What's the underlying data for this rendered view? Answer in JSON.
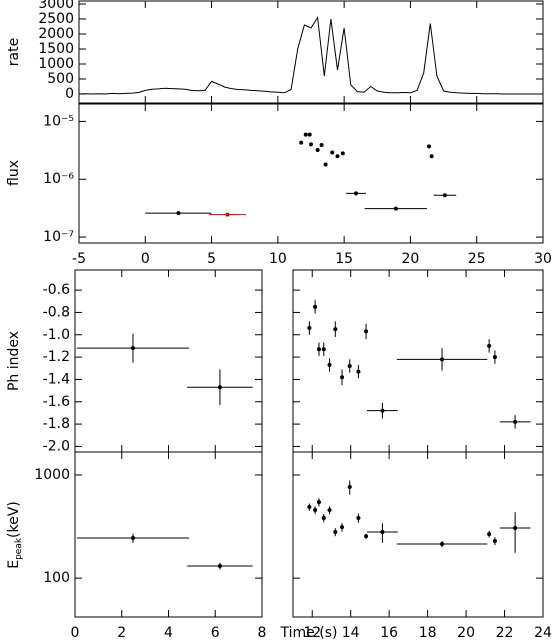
{
  "chart_data": [
    {
      "type": "line",
      "ylabel": "rate",
      "color": "#000000",
      "xlim": [
        -5,
        30
      ],
      "xticks": [
        -5,
        0,
        5,
        10,
        15,
        20,
        25,
        30
      ],
      "xtick_labels": false,
      "ylim": [
        -300,
        3100
      ],
      "yticks": [
        0,
        500,
        1000,
        1500,
        2000,
        2500,
        3000
      ],
      "x": [
        -5,
        -4.5,
        -4,
        -3.5,
        -3,
        -2.5,
        -2,
        -1.5,
        -1,
        -0.5,
        0,
        0.5,
        1,
        1.5,
        2,
        2.5,
        3,
        3.5,
        4,
        4.5,
        5,
        5.5,
        6,
        6.5,
        7,
        7.5,
        8,
        8.5,
        9,
        9.5,
        10,
        10.5,
        11,
        11.5,
        12,
        12.5,
        13,
        13.5,
        14,
        14.5,
        15,
        15.5,
        16,
        16.5,
        17,
        17.5,
        18,
        18.5,
        19,
        19.5,
        20,
        20.5,
        21,
        21.5,
        22,
        22.5,
        23,
        23.5,
        24,
        24.5,
        25,
        25.5,
        26,
        26.5,
        27,
        27.5,
        28,
        28.5,
        29,
        29.5,
        30
      ],
      "values": [
        0,
        10,
        0,
        10,
        0,
        20,
        10,
        20,
        30,
        50,
        120,
        160,
        170,
        190,
        180,
        170,
        160,
        120,
        110,
        120,
        420,
        330,
        230,
        180,
        150,
        140,
        120,
        110,
        90,
        70,
        60,
        40,
        150,
        1500,
        2300,
        2200,
        2550,
        600,
        2500,
        800,
        2200,
        300,
        80,
        60,
        250,
        100,
        60,
        40,
        40,
        50,
        40,
        120,
        700,
        2350,
        600,
        100,
        60,
        40,
        30,
        20,
        20,
        10,
        10,
        10,
        0,
        0,
        0,
        0,
        0,
        0,
        0
      ]
    },
    {
      "type": "scatter",
      "ylabel": "flux",
      "log_y": true,
      "xlim": [
        -5,
        30
      ],
      "xticks": [
        -5,
        0,
        5,
        10,
        15,
        20,
        25,
        30
      ],
      "ylim": [
        7.9e-08,
        2e-05
      ],
      "yticks": [
        {
          "value": 1e-07,
          "label": "10⁻⁷"
        },
        {
          "value": 1e-06,
          "label": "10⁻⁶"
        },
        {
          "value": 1e-05,
          "label": "10⁻⁵"
        }
      ],
      "x": [
        2.5,
        6.2,
        11.76,
        12.1,
        12.4,
        12.5,
        13.0,
        13.3,
        13.6,
        14.1,
        14.5,
        14.9,
        15.9,
        18.9,
        21.4,
        21.6,
        22.6
      ],
      "values": [
        2.6e-07,
        2.45e-07,
        4.3e-06,
        5.9e-06,
        5.9e-06,
        4e-06,
        3.2e-06,
        3.9e-06,
        1.8e-06,
        2.9e-06,
        2.5e-06,
        2.8e-06,
        5.7e-07,
        3.1e-07,
        3.7e-06,
        2.5e-06,
        5.3e-07
      ],
      "xerr": [
        2.5,
        1.4,
        0,
        0,
        0,
        0,
        0,
        0,
        0,
        0,
        0,
        0,
        0.75,
        2.35,
        0,
        0,
        0.85
      ],
      "colors": [
        "#000000",
        "#e00000",
        "#000000",
        "#000000",
        "#000000",
        "#000000",
        "#000000",
        "#000000",
        "#000000",
        "#000000",
        "#000000",
        "#000000",
        "#000000",
        "#000000",
        "#000000",
        "#000000",
        "#000000"
      ]
    },
    {
      "type": "scatter",
      "ylabel": "Ph index",
      "color": "#000000",
      "xlim": [
        0,
        8
      ],
      "xticks": [
        0,
        2,
        4,
        6,
        8
      ],
      "xtick_labels": false,
      "ylim": [
        -2.05,
        -0.42
      ],
      "yticks": [
        {
          "value": -2,
          "label": "-2.0"
        },
        -1.8,
        -1.6,
        -1.4,
        -1.2,
        {
          "value": -1,
          "label": "-1.0"
        },
        -0.8,
        -0.6
      ],
      "x": [
        2.48,
        6.2
      ],
      "values": [
        -1.12,
        -1.47
      ],
      "xerr": [
        2.4,
        1.4
      ],
      "yerr": [
        0.13,
        0.16
      ]
    },
    {
      "type": "scatter",
      "color": "#000000",
      "xlim": [
        11,
        24
      ],
      "xticks": [
        12,
        14,
        16,
        18,
        20,
        22,
        24
      ],
      "xtick_labels": false,
      "ylim": [
        -2.05,
        -0.42
      ],
      "yticks": [
        -2,
        -1.8,
        -1.6,
        -1.4,
        -1.2,
        -1,
        -0.8,
        -0.6
      ],
      "ytick_labels": false,
      "x": [
        11.85,
        12.15,
        12.35,
        12.6,
        12.9,
        13.2,
        13.55,
        13.95,
        14.4,
        14.8,
        15.65,
        18.75,
        21.2,
        21.5,
        22.55
      ],
      "values": [
        -0.94,
        -0.75,
        -1.13,
        -1.13,
        -1.27,
        -0.95,
        -1.38,
        -1.28,
        -1.33,
        -0.97,
        -1.68,
        -1.22,
        -1.1,
        -1.2,
        -1.78
      ],
      "xerr": [
        0.1,
        0.1,
        0.1,
        0.1,
        0.1,
        0.1,
        0.1,
        0.1,
        0.1,
        0.1,
        0.8,
        2.35,
        0.1,
        0.1,
        0.8
      ],
      "yerr": [
        0.06,
        0.06,
        0.06,
        0.06,
        0.06,
        0.07,
        0.07,
        0.06,
        0.06,
        0.07,
        0.07,
        0.1,
        0.06,
        0.06,
        0.06
      ]
    },
    {
      "type": "scatter",
      "ylabel": "E",
      "ylabel_sub": "peak",
      "ylabel_unit": "(keV)",
      "xlabel": "Time (s)",
      "log_y": true,
      "color": "#000000",
      "xlim": [
        0,
        8
      ],
      "xticks": [
        0,
        2,
        4,
        6,
        8
      ],
      "ylim": [
        42,
        1670
      ],
      "yticks": [
        100,
        1000
      ],
      "x": [
        2.48,
        6.2
      ],
      "values": [
        245,
        131
      ],
      "xerr": [
        2.4,
        1.4
      ],
      "yerr": [
        25,
        10
      ]
    },
    {
      "type": "scatter",
      "log_y": true,
      "color": "#000000",
      "xlim": [
        11,
        24
      ],
      "xticks": [
        12,
        14,
        16,
        18,
        20,
        22,
        24
      ],
      "ylim": [
        42,
        1670
      ],
      "yticks": [
        100,
        1000
      ],
      "ytick_labels": false,
      "x": [
        11.85,
        12.15,
        12.35,
        12.6,
        12.9,
        13.2,
        13.55,
        13.95,
        14.4,
        14.8,
        15.65,
        18.75,
        21.2,
        21.5,
        22.55
      ],
      "values": [
        489,
        457,
        545,
        383,
        457,
        280,
        312,
        764,
        383,
        255,
        280,
        214,
        267,
        229,
        306
      ],
      "xerr": [
        0.1,
        0.1,
        0.1,
        0.1,
        0.1,
        0.1,
        0.1,
        0.1,
        0.1,
        0.1,
        0.8,
        2.35,
        0.1,
        0.1,
        0.8
      ],
      "yerr": [
        40,
        40,
        50,
        35,
        40,
        25,
        30,
        120,
        40,
        15,
        60,
        15,
        20,
        20,
        130
      ]
    }
  ]
}
